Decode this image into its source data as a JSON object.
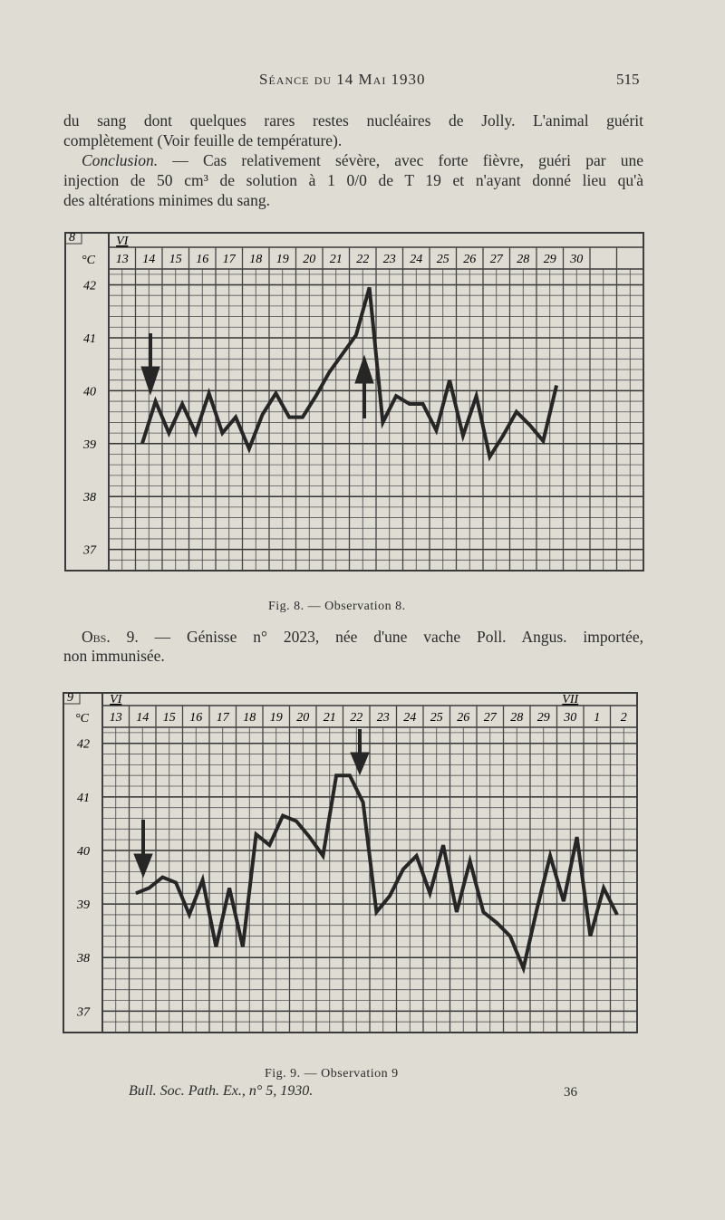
{
  "header": {
    "title": "Séance du 14 Mai 1930",
    "page_number": "515"
  },
  "text_1": {
    "lines": [
      "du sang dont quelques rares restes nucléaires de Jolly. L'animal guérit",
      "complètement (Voir feuille de température)."
    ]
  },
  "conclusion": {
    "lead": "Conclusion.",
    "lines": [
      "— Cas relativement sévère, avec forte fièvre, guéri par une",
      "injection de 50 cm³ de solution à 1 0/0 de T 19 et n'ayant donné lieu qu'à",
      "des altérations minimes du sang."
    ]
  },
  "figure_8_caption": "Fig. 8. — Observation 8.",
  "observation_9": {
    "lead": "Obs. 9.",
    "lines": [
      "— Génisse n° 2023, née d'une vache Poll. Angus. importée,",
      "non immunisée."
    ]
  },
  "figure_9_caption": "Fig. 9. — Observation 9",
  "footer": {
    "journal": "Bull. Soc. Path. Ex., n° 5, 1930.",
    "signature": "36"
  },
  "chart_data": [
    {
      "type": "line",
      "figure_number": "8",
      "unit": "°C",
      "categories": [
        "13",
        null,
        "14",
        null,
        "15",
        null,
        "16",
        null,
        "17",
        null,
        "18",
        null,
        "19",
        null,
        "20",
        null,
        "21",
        null,
        "22",
        null,
        "23",
        null,
        "24",
        null,
        "25",
        null,
        "26",
        null,
        "27",
        null,
        "28",
        null,
        "29",
        null,
        "30",
        null,
        null,
        null,
        null,
        null
      ],
      "month_labels": [
        "VI",
        null,
        null,
        null,
        null,
        null,
        null,
        null,
        null,
        null,
        null,
        null,
        null,
        null,
        null,
        null,
        null,
        null,
        null,
        null,
        null,
        null,
        null,
        null,
        null,
        null,
        null,
        null,
        null,
        null,
        null,
        null,
        null,
        null,
        null,
        null,
        null,
        null,
        null,
        null
      ],
      "series": [
        {
          "color": "#262626",
          "values": [
            null,
            null,
            39.0,
            39.8,
            39.2,
            39.75,
            39.2,
            39.95,
            39.2,
            39.5,
            38.9,
            39.55,
            39.95,
            39.5,
            39.5,
            39.9,
            40.35,
            40.7,
            41.05,
            41.95,
            39.4,
            39.9,
            39.75,
            39.75,
            39.25,
            40.2,
            39.15,
            39.9,
            38.75,
            39.15,
            39.6,
            39.35,
            39.05,
            40.1,
            null,
            null,
            null,
            null,
            null,
            null
          ]
        }
      ],
      "ylim": [
        36.6,
        42.3
      ],
      "yticks": [
        37,
        38,
        39,
        40,
        41,
        42
      ],
      "grid": true
    },
    {
      "type": "line",
      "figure_number": "9",
      "unit": "°C",
      "categories": [
        "13",
        null,
        "14",
        null,
        "15",
        null,
        "16",
        null,
        "17",
        null,
        "18",
        null,
        "19",
        null,
        "20",
        null,
        "21",
        null,
        "22",
        null,
        "23",
        null,
        "24",
        null,
        "25",
        null,
        "26",
        null,
        "27",
        null,
        "28",
        null,
        "29",
        null,
        "30",
        null,
        "1",
        null,
        "2",
        null
      ],
      "month_labels": [
        "VI",
        null,
        null,
        null,
        null,
        null,
        null,
        null,
        null,
        null,
        null,
        null,
        null,
        null,
        null,
        null,
        null,
        null,
        null,
        null,
        null,
        null,
        null,
        null,
        null,
        null,
        null,
        null,
        null,
        null,
        null,
        null,
        null,
        null,
        "VII",
        null,
        null,
        null,
        null,
        null
      ],
      "series": [
        {
          "color": "#262626",
          "values": [
            null,
            null,
            39.2,
            39.3,
            39.5,
            39.4,
            38.8,
            39.45,
            38.2,
            39.3,
            38.2,
            40.3,
            40.1,
            40.65,
            40.55,
            40.25,
            39.9,
            41.4,
            41.4,
            40.9,
            38.85,
            39.15,
            39.65,
            39.9,
            39.2,
            40.1,
            38.85,
            39.8,
            38.85,
            38.65,
            38.4,
            37.8,
            38.9,
            39.9,
            39.05,
            40.25,
            38.4,
            39.3,
            38.8,
            null
          ]
        }
      ],
      "ylim": [
        36.6,
        42.3
      ],
      "yticks": [
        37,
        38,
        39,
        40,
        41,
        42
      ],
      "grid": true
    }
  ]
}
